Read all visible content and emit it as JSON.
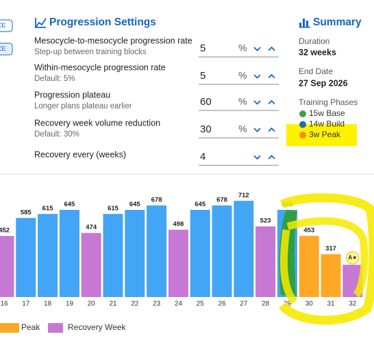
{
  "side_buttons": [
    "ACE",
    "ACE"
  ],
  "settings": {
    "title": "Progression Settings",
    "rows": [
      {
        "label": "Mesocycle-to-mesocycle progression rate",
        "hint": "Step-up between training blocks",
        "value": "5",
        "unit": "%"
      },
      {
        "label": "Within-mesocycle progression rate",
        "hint": "Default: 5%",
        "value": "5",
        "unit": "%"
      },
      {
        "label": "Progression plateau",
        "hint": "Longer plans plateau earlier",
        "value": "60",
        "unit": "%"
      },
      {
        "label": "Recovery week volume reduction",
        "hint": "Default: 30%",
        "value": "30",
        "unit": "%"
      },
      {
        "label": "Recovery every (weeks)",
        "value": "4"
      }
    ]
  },
  "summary": {
    "title": "Summary",
    "duration_label": "Duration",
    "duration": "32 weeks",
    "end_date_label": "End Date",
    "end_date": "27 Sep 2026",
    "phases_label": "Training Phases",
    "phases": [
      {
        "name": "15w Base",
        "color": "#43a047"
      },
      {
        "name": "14w Build",
        "color": "#1e6fa8"
      },
      {
        "name": "3w Peak",
        "color": "#fb8c00"
      }
    ]
  },
  "chart_data": {
    "type": "bar",
    "categories": [
      "16",
      "17",
      "18",
      "19",
      "20",
      "21",
      "22",
      "23",
      "24",
      "25",
      "26",
      "27",
      "28",
      "29",
      "30",
      "31",
      "32"
    ],
    "values": [
      452,
      585,
      615,
      645,
      474,
      615,
      645,
      678,
      498,
      645,
      678,
      712,
      523,
      645,
      453,
      317,
      239
    ],
    "colors": [
      "#c678d4",
      "#42a5f5",
      "#42a5f5",
      "#42a5f5",
      "#c678d4",
      "#42a5f5",
      "#42a5f5",
      "#42a5f5",
      "#c678d4",
      "#42a5f5",
      "#42a5f5",
      "#42a5f5",
      "#c678d4",
      "#42a5f5",
      "#ffa726",
      "#ffa726",
      "#c678d4"
    ],
    "ylim": [
      0,
      800
    ],
    "badge": "A★",
    "legend": [
      {
        "name": "Peak",
        "color": "#ffa726"
      },
      {
        "name": "Recovery Week",
        "color": "#c678d4"
      }
    ]
  }
}
